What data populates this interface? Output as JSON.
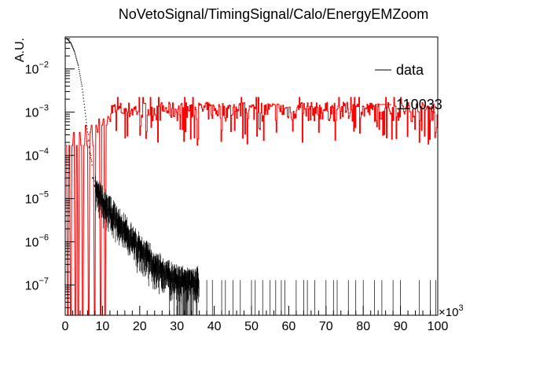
{
  "chart_data": {
    "type": "histogram",
    "title": "NoVetoSignal/TimingSignal/Calo/EnergyEMZoom",
    "ylabel": "A.U.",
    "xlabel": "",
    "x_multiplier_label": "×10",
    "x_multiplier_exp": "3",
    "xlim": [
      0,
      100
    ],
    "ylim": [
      2e-08,
      0.055
    ],
    "y_scale": "log",
    "x_ticks": [
      "0",
      "10",
      "20",
      "30",
      "40",
      "50",
      "60",
      "70",
      "80",
      "90",
      "100"
    ],
    "y_ticks": [
      {
        "value": 1e-07,
        "base": "10",
        "exp": "−7"
      },
      {
        "value": 1e-06,
        "base": "10",
        "exp": "−6"
      },
      {
        "value": 1e-05,
        "base": "10",
        "exp": "−5"
      },
      {
        "value": 0.0001,
        "base": "10",
        "exp": "−4"
      },
      {
        "value": 0.001,
        "base": "10",
        "exp": "−3"
      },
      {
        "value": 0.01,
        "base": "10",
        "exp": "−2"
      }
    ],
    "legend": [
      {
        "label": "data",
        "color": "#000000"
      },
      {
        "label": "110033",
        "color": "#ff0000"
      }
    ],
    "legend_position": "top-right",
    "grid": false,
    "series": [
      {
        "name": "data",
        "color": "#000000",
        "style": "points",
        "description_points": [
          {
            "x": 0.5,
            "y": 0.05
          },
          {
            "x": 1.5,
            "y": 0.04
          },
          {
            "x": 2.5,
            "y": 0.025
          },
          {
            "x": 3.5,
            "y": 0.012
          },
          {
            "x": 4.5,
            "y": 0.004
          },
          {
            "x": 5.5,
            "y": 0.0008
          },
          {
            "x": 6.5,
            "y": 0.00015
          },
          {
            "x": 7.5,
            "y": 3e-05
          },
          {
            "x": 8.5,
            "y": 1.5e-05
          },
          {
            "x": 10,
            "y": 9e-06
          },
          {
            "x": 12,
            "y": 5e-06
          },
          {
            "x": 14,
            "y": 3e-06
          },
          {
            "x": 16,
            "y": 1.8e-06
          },
          {
            "x": 18,
            "y": 1.1e-06
          },
          {
            "x": 20,
            "y": 7e-07
          },
          {
            "x": 22,
            "y": 4.5e-07
          },
          {
            "x": 24,
            "y": 3e-07
          },
          {
            "x": 26,
            "y": 2.2e-07
          },
          {
            "x": 28,
            "y": 1.6e-07
          },
          {
            "x": 30,
            "y": 1.3e-07
          },
          {
            "x": 33,
            "y": 1.2e-07
          },
          {
            "x": 36,
            "y": 1.2e-07
          }
        ],
        "sparse_bins_value": 1.3e-07,
        "sparse_bins_x": [
          38,
          39.5,
          42,
          43,
          45,
          47,
          50,
          51,
          53,
          55,
          56.5,
          58,
          59,
          62,
          64,
          65,
          67,
          70,
          72,
          73,
          76,
          78,
          80,
          83,
          85,
          88,
          90,
          95,
          98,
          99.5
        ]
      },
      {
        "name": "110033",
        "color": "#ff0000",
        "style": "histogram",
        "level": 0.0011,
        "low_bins": [
          {
            "x": 0.2,
            "y": 0.00017
          },
          {
            "x": 0.6,
            "y": 2e-08
          },
          {
            "x": 1.0,
            "y": 0.00017
          },
          {
            "x": 1.4,
            "y": 2e-08
          },
          {
            "x": 1.8,
            "y": 0.00017
          },
          {
            "x": 2.2,
            "y": 0.00034
          },
          {
            "x": 2.6,
            "y": 2e-08
          },
          {
            "x": 3.0,
            "y": 0.00017
          },
          {
            "x": 3.4,
            "y": 2e-08
          },
          {
            "x": 3.8,
            "y": 0.00034
          },
          {
            "x": 4.2,
            "y": 0.00017
          },
          {
            "x": 4.6,
            "y": 2e-08
          },
          {
            "x": 5.0,
            "y": 0.00017
          },
          {
            "x": 5.4,
            "y": 0.0005
          },
          {
            "x": 5.8,
            "y": 0.00017
          },
          {
            "x": 6.2,
            "y": 2e-08
          },
          {
            "x": 6.6,
            "y": 0.00034
          },
          {
            "x": 7.0,
            "y": 0.0005
          },
          {
            "x": 7.4,
            "y": 0.00017
          },
          {
            "x": 7.8,
            "y": 2e-08
          },
          {
            "x": 8.2,
            "y": 0.0005
          },
          {
            "x": 8.6,
            "y": 0.00034
          },
          {
            "x": 9.0,
            "y": 0.0007
          },
          {
            "x": 9.4,
            "y": 2e-08
          },
          {
            "x": 9.8,
            "y": 0.0005
          },
          {
            "x": 10.2,
            "y": 0.0007
          },
          {
            "x": 10.6,
            "y": 2e-08
          },
          {
            "x": 11.0,
            "y": 0.0005
          },
          {
            "x": 11.4,
            "y": 0.0008
          },
          {
            "x": 11.8,
            "y": 0.0007
          }
        ]
      }
    ]
  }
}
